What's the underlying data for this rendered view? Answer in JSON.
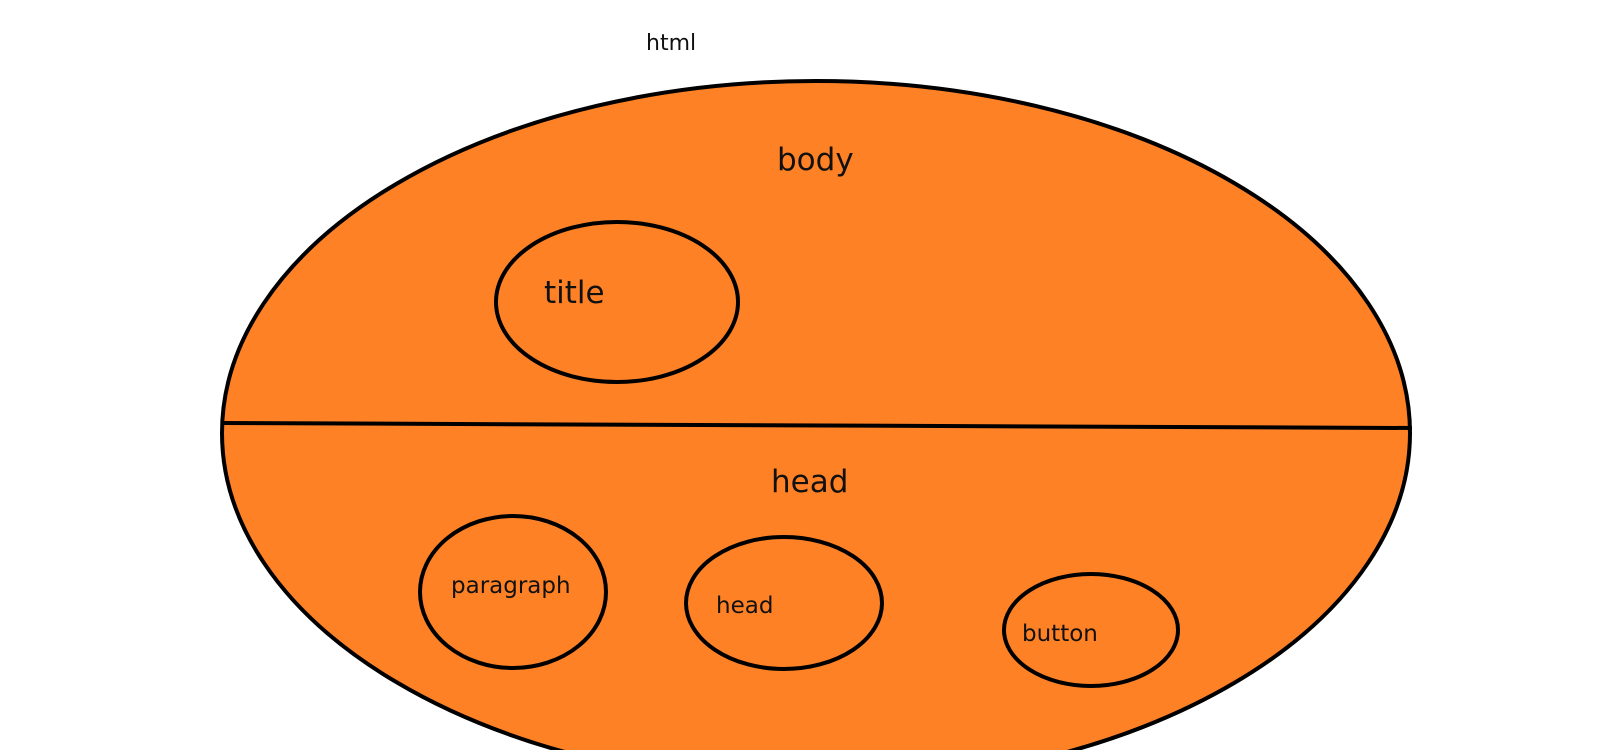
{
  "labels": {
    "outer": "html",
    "upper_region": "body",
    "upper_child": "title",
    "lower_region": "head",
    "lower_children": [
      "paragraph",
      "head",
      "button"
    ]
  },
  "colors": {
    "fill": "#FF8126",
    "stroke": "#000000",
    "background": "#FFFFFF"
  }
}
